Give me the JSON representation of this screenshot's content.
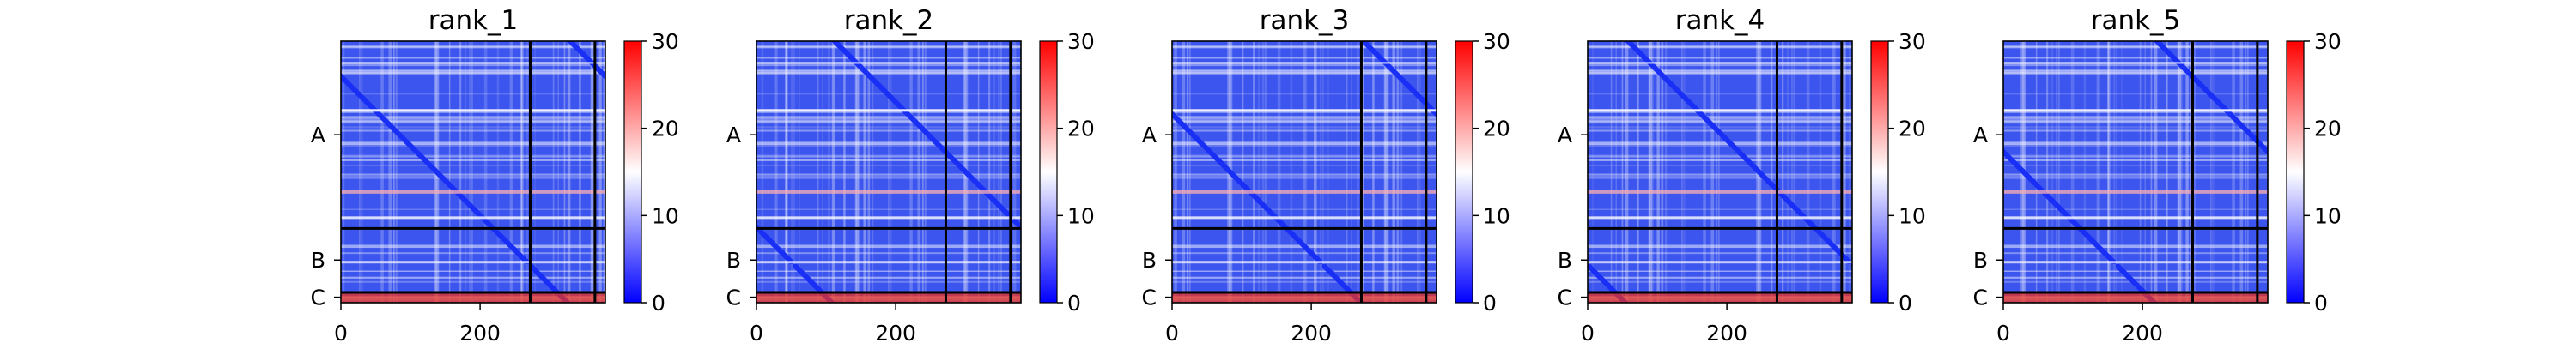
{
  "chart_data": {
    "type": "heatmap",
    "colorscale": {
      "colors": [
        "#0000ff",
        "#ffffff",
        "#ff0000"
      ],
      "range": [
        0,
        30
      ]
    },
    "colorbar_ticks": [
      "0",
      "10",
      "20",
      "30"
    ],
    "x_range": [
      0,
      380
    ],
    "x_ticks": [
      {
        "value": 0,
        "label": "0"
      },
      {
        "value": 200,
        "label": "200"
      }
    ],
    "chain_boundaries": [
      272,
      365
    ],
    "y_ticks": [
      {
        "value": 136,
        "label": "A"
      },
      {
        "value": 318,
        "label": "B"
      },
      {
        "value": 372,
        "label": "C"
      }
    ],
    "grid": false,
    "panels": [
      {
        "title": "rank_1"
      },
      {
        "title": "rank_2"
      },
      {
        "title": "rank_3"
      },
      {
        "title": "rank_4"
      },
      {
        "title": "rank_5"
      }
    ]
  }
}
